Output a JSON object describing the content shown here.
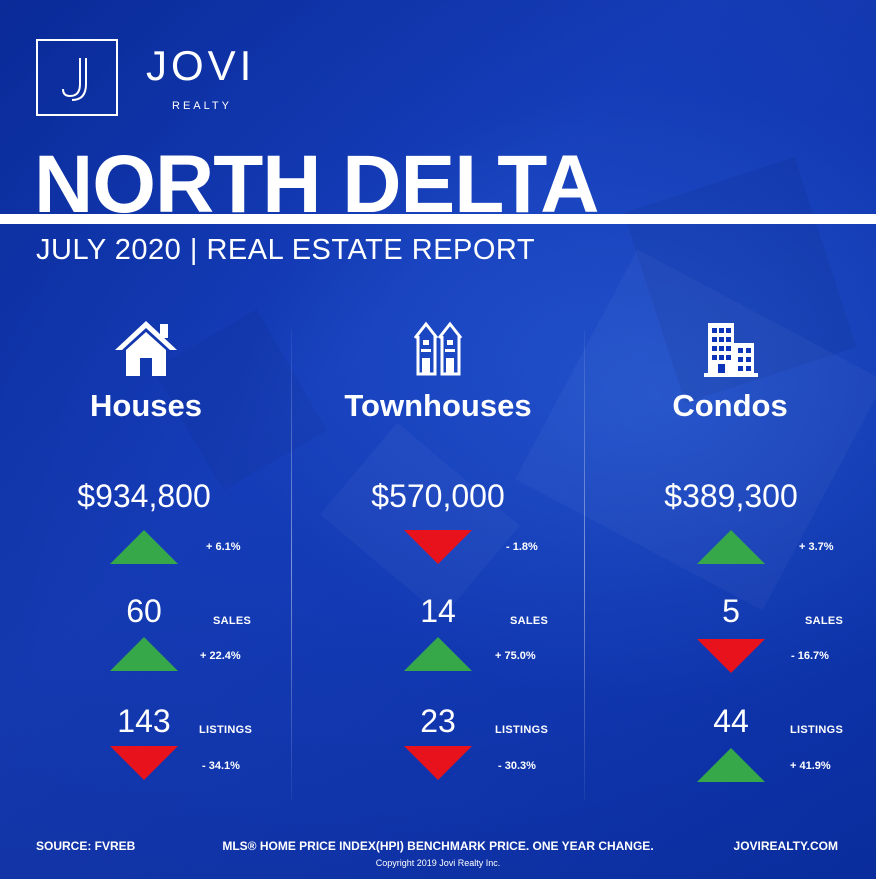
{
  "brand": {
    "name": "JOVI",
    "sub": "REALTY"
  },
  "header": {
    "title": "NORTH DELTA",
    "subtitle": "JULY 2020 | REAL ESTATE REPORT"
  },
  "columns": [
    {
      "title": "Houses",
      "icon": "house-icon",
      "price": "$934,800",
      "price_change": "+ 6.1%",
      "price_trend": "up",
      "sales": "60",
      "sales_label": "SALES",
      "sales_change": "+ 22.4%",
      "sales_trend": "up",
      "listings": "143",
      "listings_label": "LISTINGS",
      "listings_change": "- 34.1%",
      "listings_trend": "down"
    },
    {
      "title": "Townhouses",
      "icon": "townhouse-icon",
      "price": "$570,000",
      "price_change": "- 1.8%",
      "price_trend": "down",
      "sales": "14",
      "sales_label": "SALES",
      "sales_change": "+ 75.0%",
      "sales_trend": "up",
      "listings": "23",
      "listings_label": "LISTINGS",
      "listings_change": "- 30.3%",
      "listings_trend": "down"
    },
    {
      "title": "Condos",
      "icon": "condo-building-icon",
      "price": "$389,300",
      "price_change": "+ 3.7%",
      "price_trend": "up",
      "sales": "5",
      "sales_label": "SALES",
      "sales_change": "- 16.7%",
      "sales_trend": "down",
      "listings": "44",
      "listings_label": "LISTINGS",
      "listings_change": "+ 41.9%",
      "listings_trend": "up"
    }
  ],
  "footer": {
    "source": "SOURCE:  FVREB",
    "note": "MLS® HOME PRICE INDEX(HPI) BENCHMARK PRICE. ONE YEAR CHANGE.",
    "website": "JOVIREALTY.COM",
    "copyright": "Copyright 2019 Jovi Realty Inc."
  },
  "colors": {
    "background": "#0b34b8",
    "up": "#36a84a",
    "down": "#e8121c",
    "text": "#ffffff"
  }
}
